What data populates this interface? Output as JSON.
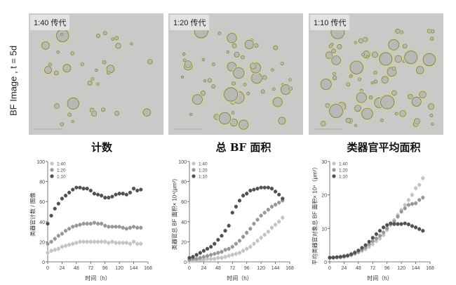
{
  "row_label": "BF Image , t = 5d",
  "images": [
    {
      "label": "1:40 传代"
    },
    {
      "label": "1:20 传代"
    },
    {
      "label": "1:10 传代"
    }
  ],
  "series_colors": {
    "1:40": "#c4c4c4",
    "1:20": "#979797",
    "1:10": "#515151"
  },
  "chart_data": [
    {
      "type": "scatter",
      "title": "计数",
      "xlabel": "时间（h）",
      "ylabel": "类器官计数 / 图像",
      "xlim": [
        0,
        168
      ],
      "ylim": [
        0,
        100
      ],
      "xticks": [
        0,
        24,
        48,
        72,
        96,
        120,
        144,
        168
      ],
      "yticks": [
        0,
        20,
        40,
        60,
        80,
        100
      ],
      "legend": "top-left",
      "x": [
        0,
        6,
        12,
        18,
        24,
        30,
        36,
        42,
        48,
        54,
        60,
        66,
        72,
        78,
        84,
        90,
        96,
        102,
        108,
        114,
        120,
        126,
        132,
        138,
        144,
        150,
        156
      ],
      "series": [
        {
          "name": "1:40",
          "values": [
            9,
            11,
            12,
            13,
            15,
            16,
            17,
            18,
            19,
            20,
            20,
            20,
            20,
            20,
            20,
            20,
            20,
            19,
            20,
            19,
            19,
            19,
            19,
            18,
            20,
            18,
            18
          ]
        },
        {
          "name": "1:20",
          "values": [
            18,
            20,
            23,
            26,
            28,
            31,
            33,
            35,
            36,
            37,
            38,
            38,
            38,
            39,
            38,
            38,
            36,
            35,
            35,
            35,
            35,
            34,
            33,
            34,
            35,
            34,
            34
          ]
        },
        {
          "name": "1:10",
          "values": [
            38,
            46,
            53,
            58,
            63,
            66,
            69,
            72,
            74,
            74,
            73,
            73,
            71,
            68,
            67,
            66,
            64,
            64,
            65,
            67,
            68,
            68,
            67,
            69,
            73,
            71,
            72
          ]
        }
      ]
    },
    {
      "type": "scatter",
      "title": "总 BF 面积",
      "xlabel": "时间（h）",
      "ylabel": "类器官总 BF 面积× 10⁴(μm²)",
      "xlim": [
        0,
        168
      ],
      "ylim": [
        0,
        100
      ],
      "xticks": [
        0,
        24,
        48,
        72,
        96,
        120,
        144,
        168
      ],
      "yticks": [
        0,
        20,
        40,
        60,
        80,
        100
      ],
      "legend": "top-left",
      "x": [
        0,
        6,
        12,
        18,
        24,
        30,
        36,
        42,
        48,
        54,
        60,
        66,
        72,
        78,
        84,
        90,
        96,
        102,
        108,
        114,
        120,
        126,
        132,
        138,
        144,
        150,
        156
      ],
      "series": [
        {
          "name": "1:40",
          "values": [
            1,
            1,
            2,
            2,
            2,
            3,
            3,
            3,
            4,
            4,
            5,
            6,
            7,
            8,
            9,
            11,
            13,
            15,
            18,
            21,
            24,
            27,
            30,
            34,
            37,
            40,
            44
          ]
        },
        {
          "name": "1:20",
          "values": [
            2,
            3,
            3,
            4,
            5,
            6,
            7,
            8,
            9,
            10,
            12,
            13,
            15,
            18,
            21,
            25,
            29,
            33,
            38,
            42,
            46,
            49,
            52,
            55,
            57,
            59,
            61
          ]
        },
        {
          "name": "1:10",
          "values": [
            4,
            5,
            7,
            9,
            11,
            13,
            15,
            18,
            22,
            26,
            31,
            36,
            49,
            55,
            61,
            66,
            68,
            71,
            72,
            73,
            74,
            74,
            74,
            73,
            70,
            67,
            63
          ]
        }
      ]
    },
    {
      "type": "scatter",
      "title": "类器官平均面积",
      "xlabel": "时间（h）",
      "ylabel": "平均类器官对象总 BF 面积× 10⁴（μm²）",
      "xlim": [
        0,
        168
      ],
      "ylim": [
        0,
        30
      ],
      "xticks": [
        0,
        24,
        48,
        72,
        96,
        120,
        144,
        168
      ],
      "yticks": [
        0,
        10,
        20,
        30
      ],
      "legend": "top-left",
      "x": [
        0,
        6,
        12,
        18,
        24,
        30,
        36,
        42,
        48,
        54,
        60,
        66,
        72,
        78,
        84,
        90,
        96,
        102,
        108,
        114,
        120,
        126,
        132,
        138,
        144,
        150,
        156
      ],
      "series": [
        {
          "name": "1:40",
          "values": [
            1.2,
            1.2,
            1.3,
            1.4,
            1.5,
            1.7,
            2.0,
            2.4,
            2.8,
            3.3,
            3.8,
            4.5,
            5.3,
            6.2,
            7.0,
            8.0,
            9.5,
            11.0,
            12.5,
            14.0,
            15.5,
            17.0,
            18.5,
            20.0,
            22.0,
            23.0,
            25.0
          ]
        },
        {
          "name": "1:20",
          "values": [
            1.2,
            1.3,
            1.4,
            1.5,
            1.6,
            1.8,
            2.1,
            2.5,
            3.0,
            3.6,
            4.3,
            5.2,
            6.2,
            7.0,
            7.8,
            8.8,
            10.0,
            11.3,
            12.0,
            13.5,
            15.0,
            16.0,
            17.0,
            17.3,
            17.5,
            18.5,
            19.2
          ]
        },
        {
          "name": "1:10",
          "values": [
            1.3,
            1.3,
            1.4,
            1.5,
            1.7,
            1.9,
            2.3,
            2.8,
            3.4,
            4.2,
            5.0,
            6.0,
            7.2,
            8.3,
            9.3,
            10.3,
            11.0,
            11.5,
            11.3,
            11.3,
            11.3,
            11.5,
            11.2,
            10.7,
            10.3,
            9.8,
            9.3
          ]
        }
      ]
    }
  ]
}
